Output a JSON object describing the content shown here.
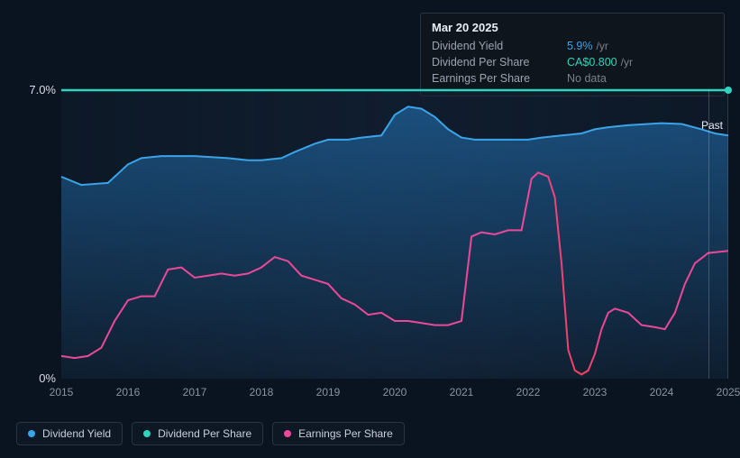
{
  "tooltip": {
    "date": "Mar 20 2025",
    "rows": [
      {
        "label": "Dividend Yield",
        "value": "5.9%",
        "unit": "/yr",
        "color": "#3ba3e8"
      },
      {
        "label": "Dividend Per Share",
        "value": "CA$0.800",
        "unit": "/yr",
        "color": "#2dd4bf"
      },
      {
        "label": "Earnings Per Share",
        "value": "No data",
        "unit": "",
        "color": "#7a828c"
      }
    ]
  },
  "chart": {
    "type": "line-area",
    "background_color": "#0a1420",
    "plot_bg": "rgba(20,35,55,0.5)",
    "x_axis": {
      "years": [
        "2015",
        "2016",
        "2017",
        "2018",
        "2019",
        "2020",
        "2021",
        "2022",
        "2023",
        "2024",
        "2025"
      ],
      "label_color": "#8a94a0",
      "label_fontsize": 12
    },
    "y_axis": {
      "ticks": [
        {
          "label": "7.0%",
          "value": 7.0
        },
        {
          "label": "0%",
          "value": 0.0
        }
      ],
      "label_color": "#d8dee6",
      "label_fontsize": 13,
      "min": 0,
      "max": 7.0,
      "past_label": "Past"
    },
    "series": {
      "dividend_yield": {
        "label": "Dividend Yield",
        "color": "#3ba3e8",
        "fill_top": "rgba(36,120,190,0.55)",
        "fill_bottom": "rgba(36,120,190,0.05)",
        "line_width": 2,
        "type": "area",
        "data": [
          [
            0.0,
            4.9
          ],
          [
            0.03,
            4.7
          ],
          [
            0.07,
            4.75
          ],
          [
            0.1,
            5.2
          ],
          [
            0.12,
            5.35
          ],
          [
            0.15,
            5.4
          ],
          [
            0.2,
            5.4
          ],
          [
            0.25,
            5.35
          ],
          [
            0.28,
            5.3
          ],
          [
            0.3,
            5.3
          ],
          [
            0.33,
            5.35
          ],
          [
            0.35,
            5.5
          ],
          [
            0.38,
            5.7
          ],
          [
            0.4,
            5.8
          ],
          [
            0.43,
            5.8
          ],
          [
            0.45,
            5.85
          ],
          [
            0.48,
            5.9
          ],
          [
            0.5,
            6.4
          ],
          [
            0.52,
            6.6
          ],
          [
            0.54,
            6.55
          ],
          [
            0.56,
            6.35
          ],
          [
            0.58,
            6.05
          ],
          [
            0.6,
            5.85
          ],
          [
            0.62,
            5.8
          ],
          [
            0.65,
            5.8
          ],
          [
            0.68,
            5.8
          ],
          [
            0.7,
            5.8
          ],
          [
            0.72,
            5.85
          ],
          [
            0.75,
            5.9
          ],
          [
            0.78,
            5.95
          ],
          [
            0.8,
            6.05
          ],
          [
            0.82,
            6.1
          ],
          [
            0.85,
            6.15
          ],
          [
            0.88,
            6.18
          ],
          [
            0.9,
            6.2
          ],
          [
            0.93,
            6.18
          ],
          [
            0.96,
            6.05
          ],
          [
            0.98,
            5.95
          ],
          [
            1.0,
            5.9
          ]
        ]
      },
      "dividend_per_share": {
        "label": "Dividend Per Share",
        "color": "#2dd4bf",
        "line_width": 2.5,
        "type": "line",
        "data": [
          [
            0.0,
            7.0
          ],
          [
            1.0,
            7.0
          ]
        ]
      },
      "earnings_per_share": {
        "label": "Earnings Per Share",
        "color_start": "#f43f5e",
        "color_end": "#ec4899",
        "color": "#ec4899",
        "line_width": 2,
        "type": "line",
        "data": [
          [
            0.0,
            0.55
          ],
          [
            0.02,
            0.5
          ],
          [
            0.04,
            0.55
          ],
          [
            0.06,
            0.75
          ],
          [
            0.08,
            1.4
          ],
          [
            0.1,
            1.9
          ],
          [
            0.12,
            2.0
          ],
          [
            0.14,
            2.0
          ],
          [
            0.16,
            2.65
          ],
          [
            0.18,
            2.7
          ],
          [
            0.2,
            2.45
          ],
          [
            0.22,
            2.5
          ],
          [
            0.24,
            2.55
          ],
          [
            0.26,
            2.5
          ],
          [
            0.28,
            2.55
          ],
          [
            0.3,
            2.7
          ],
          [
            0.32,
            2.95
          ],
          [
            0.34,
            2.85
          ],
          [
            0.36,
            2.5
          ],
          [
            0.38,
            2.4
          ],
          [
            0.4,
            2.3
          ],
          [
            0.42,
            1.95
          ],
          [
            0.44,
            1.8
          ],
          [
            0.46,
            1.55
          ],
          [
            0.48,
            1.6
          ],
          [
            0.5,
            1.4
          ],
          [
            0.52,
            1.4
          ],
          [
            0.54,
            1.35
          ],
          [
            0.56,
            1.3
          ],
          [
            0.58,
            1.3
          ],
          [
            0.6,
            1.4
          ],
          [
            0.615,
            3.45
          ],
          [
            0.63,
            3.55
          ],
          [
            0.65,
            3.5
          ],
          [
            0.67,
            3.6
          ],
          [
            0.69,
            3.6
          ],
          [
            0.705,
            4.85
          ],
          [
            0.715,
            5.0
          ],
          [
            0.73,
            4.9
          ],
          [
            0.74,
            4.4
          ],
          [
            0.75,
            2.8
          ],
          [
            0.76,
            0.7
          ],
          [
            0.77,
            0.2
          ],
          [
            0.78,
            0.1
          ],
          [
            0.79,
            0.2
          ],
          [
            0.8,
            0.6
          ],
          [
            0.81,
            1.2
          ],
          [
            0.82,
            1.6
          ],
          [
            0.83,
            1.7
          ],
          [
            0.85,
            1.6
          ],
          [
            0.87,
            1.3
          ],
          [
            0.89,
            1.25
          ],
          [
            0.905,
            1.2
          ],
          [
            0.92,
            1.6
          ],
          [
            0.935,
            2.3
          ],
          [
            0.95,
            2.8
          ],
          [
            0.97,
            3.05
          ],
          [
            1.0,
            3.1
          ]
        ]
      }
    },
    "legend": [
      {
        "label": "Dividend Yield",
        "color": "#3ba3e8"
      },
      {
        "label": "Dividend Per Share",
        "color": "#2dd4bf"
      },
      {
        "label": "Earnings Per Share",
        "color": "#ec4899"
      }
    ]
  }
}
